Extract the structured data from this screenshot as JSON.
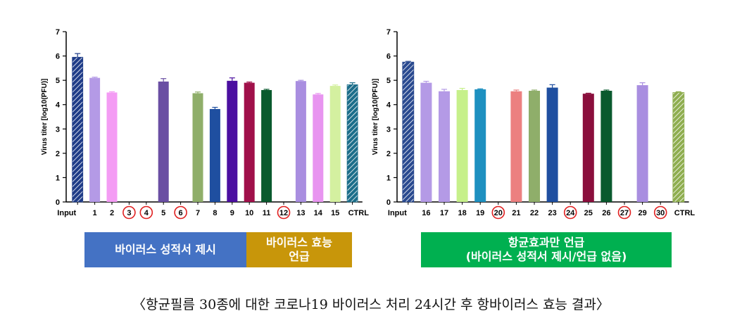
{
  "chart_data": [
    {
      "type": "bar",
      "ylabel": "Virus titer [log10(PFU)]",
      "ylim": [
        0,
        7
      ],
      "yticks": [
        "0",
        "1",
        "2",
        "3",
        "4",
        "5",
        "6",
        "7"
      ],
      "categories": [
        "Input",
        "1",
        "2",
        "3",
        "4",
        "5",
        "6",
        "7",
        "8",
        "9",
        "10",
        "11",
        "12",
        "13",
        "14",
        "15",
        "CTRL"
      ],
      "values": [
        5.95,
        5.1,
        4.5,
        0,
        0,
        4.95,
        0,
        4.47,
        3.82,
        4.98,
        4.9,
        4.6,
        0,
        4.97,
        4.42,
        4.77,
        4.82
      ],
      "errors": [
        0.15,
        0.03,
        0.03,
        0,
        0,
        0.12,
        0,
        0.05,
        0.07,
        0.12,
        0.03,
        0.03,
        0,
        0.03,
        0.04,
        0.04,
        0.08
      ],
      "colors": [
        "#1f3c88",
        "#b49ae6",
        "#f49cf4",
        "#ffffff",
        "#ffffff",
        "#6a4fa3",
        "#ffffff",
        "#8fae6a",
        "#1f4fa0",
        "#4b0fa0",
        "#a0104a",
        "#0a5a2e",
        "#ffffff",
        "#a98ee0",
        "#e895f0",
        "#d4f0a0",
        "#1c6e8a"
      ],
      "hatched": [
        true,
        false,
        false,
        false,
        false,
        false,
        false,
        false,
        false,
        false,
        false,
        false,
        false,
        false,
        false,
        false,
        true
      ],
      "circled": [
        "3",
        "4",
        "6",
        "12"
      ]
    },
    {
      "type": "bar",
      "ylabel": "Virus titer [log10(PFU)]",
      "ylim": [
        0,
        7
      ],
      "yticks": [
        "0",
        "1",
        "2",
        "3",
        "4",
        "5",
        "6",
        "7"
      ],
      "categories": [
        "Input",
        "16",
        "17",
        "18",
        "19",
        "20",
        "21",
        "22",
        "23",
        "24",
        "25",
        "26",
        "27",
        "29",
        "30",
        "CTRL"
      ],
      "values": [
        5.75,
        4.9,
        4.55,
        4.6,
        4.63,
        0,
        4.55,
        4.57,
        4.7,
        0,
        4.45,
        4.57,
        0,
        4.8,
        0,
        4.5
      ],
      "errors": [
        0.03,
        0.06,
        0.08,
        0.07,
        0.02,
        0,
        0.05,
        0.03,
        0.12,
        0,
        0.02,
        0.03,
        0,
        0.1,
        0,
        0.03
      ],
      "colors": [
        "#2a4a90",
        "#b49ae6",
        "#b49ae6",
        "#c6f08a",
        "#1e90c0",
        "#ffffff",
        "#ec8080",
        "#8fae6a",
        "#1f4fa0",
        "#ffffff",
        "#8a0e3c",
        "#0a5a2e",
        "#ffffff",
        "#a98ee0",
        "#ffffff",
        "#8fae50"
      ],
      "hatched": [
        true,
        false,
        false,
        false,
        false,
        false,
        false,
        false,
        false,
        false,
        false,
        false,
        false,
        false,
        false,
        true
      ],
      "circled": [
        "20",
        "24",
        "27",
        "30"
      ]
    }
  ],
  "legend": {
    "box1": "바이러스 성적서 제시",
    "box2_line1": "바이러스 효능",
    "box2_line2": "언급",
    "box3_line1": "항균효과만 언급",
    "box3_line2": "(바이러스 성적서 제시/언급 없음)"
  },
  "caption": "〈항균필름 30종에 대한 코로나19 바이러스 처리 24시간 후 항바이러스 효능 결과〉"
}
